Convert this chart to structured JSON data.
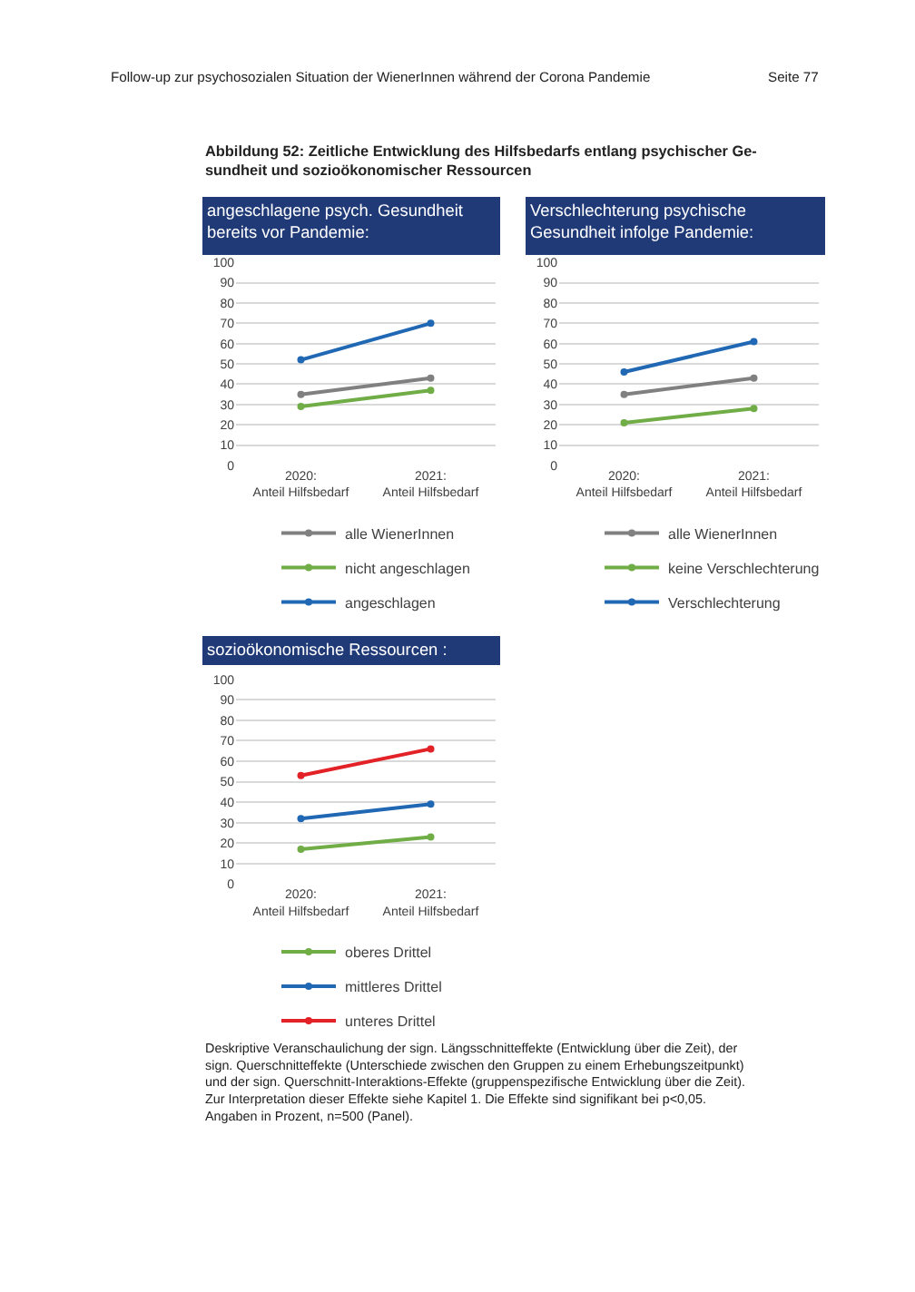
{
  "chart_data": [
    {
      "type": "line",
      "title": "angeschlagene psych. Gesundheit\nbereits vor Pandemie:",
      "categories": [
        "2020:\nAnteil Hilfsbedarf",
        "2021:\nAnteil Hilfsbedarf"
      ],
      "series": [
        {
          "name": "alle WienerInnen",
          "color": "#808080",
          "values": [
            35,
            43
          ]
        },
        {
          "name": "nicht angeschlagen",
          "color": "#70ad47",
          "values": [
            29,
            37
          ]
        },
        {
          "name": "angeschlagen",
          "color": "#2068b4",
          "values": [
            52,
            70
          ]
        }
      ],
      "ylim": [
        0,
        100
      ],
      "yticks": [
        0,
        10,
        20,
        30,
        40,
        50,
        60,
        70,
        80,
        90,
        100
      ],
      "grid": "y",
      "legend": "bottom",
      "marker": "circle",
      "line_style": "solid",
      "annotations": [
        "Follow-up zur psychosozialen Situation der WienerInnen während der Corona Pandemie",
        "Seite 77",
        "Abbildung 52: Zeitliche Entwicklung des Hilfsbedarfs entlang psychischer Ge-\nsundheit und sozioökonomischer Ressourcen"
      ]
    },
    {
      "type": "line",
      "title": "Verschlechterung psychische\nGesundheit infolge Pandemie:",
      "categories": [
        "2020:\nAnteil Hilfsbedarf",
        "2021:\nAnteil Hilfsbedarf"
      ],
      "series": [
        {
          "name": "alle WienerInnen",
          "color": "#808080",
          "values": [
            35,
            43
          ]
        },
        {
          "name": "keine Verschlechterung",
          "color": "#70ad47",
          "values": [
            21,
            28
          ]
        },
        {
          "name": "Verschlechterung",
          "color": "#2068b4",
          "values": [
            46,
            61
          ]
        }
      ],
      "ylim": [
        0,
        100
      ],
      "yticks": [
        0,
        10,
        20,
        30,
        40,
        50,
        60,
        70,
        80,
        90,
        100
      ],
      "grid": "y",
      "legend": "bottom",
      "marker": "circle",
      "line_style": "solid"
    },
    {
      "type": "line",
      "title": "sozioökonomische Ressourcen :",
      "categories": [
        "2020:\nAnteil Hilfsbedarf",
        "2021:\nAnteil Hilfsbedarf"
      ],
      "series": [
        {
          "name": "oberes Drittel",
          "color": "#70ad47",
          "values": [
            17,
            23
          ]
        },
        {
          "name": "mittleres Drittel",
          "color": "#2068b4",
          "values": [
            32,
            39
          ]
        },
        {
          "name": "unteres Drittel",
          "color": "#e32228",
          "values": [
            53,
            66
          ]
        }
      ],
      "ylim": [
        0,
        100
      ],
      "yticks": [
        0,
        10,
        20,
        30,
        40,
        50,
        60,
        70,
        80,
        90,
        100
      ],
      "grid": "y",
      "legend": "bottom",
      "marker": "circle",
      "line_style": "solid",
      "annotations": [
        "Deskriptive Veranschaulichung der sign. Längsschnitteffekte (Entwicklung über die Zeit), der\nsign. Querschnitteffekte (Unterschiede zwischen den Gruppen zu einem Erhebungszeitpunkt)\nund der sign. Querschnitt-Interaktions-Effekte (gruppenspezifische Entwicklung über die Zeit).\nZur Interpretation dieser Effekte siehe Kapitel 1. Die Effekte sind signifikant bei p<0,05.\nAngaben in Prozent, n=500 (Panel)."
      ]
    }
  ]
}
